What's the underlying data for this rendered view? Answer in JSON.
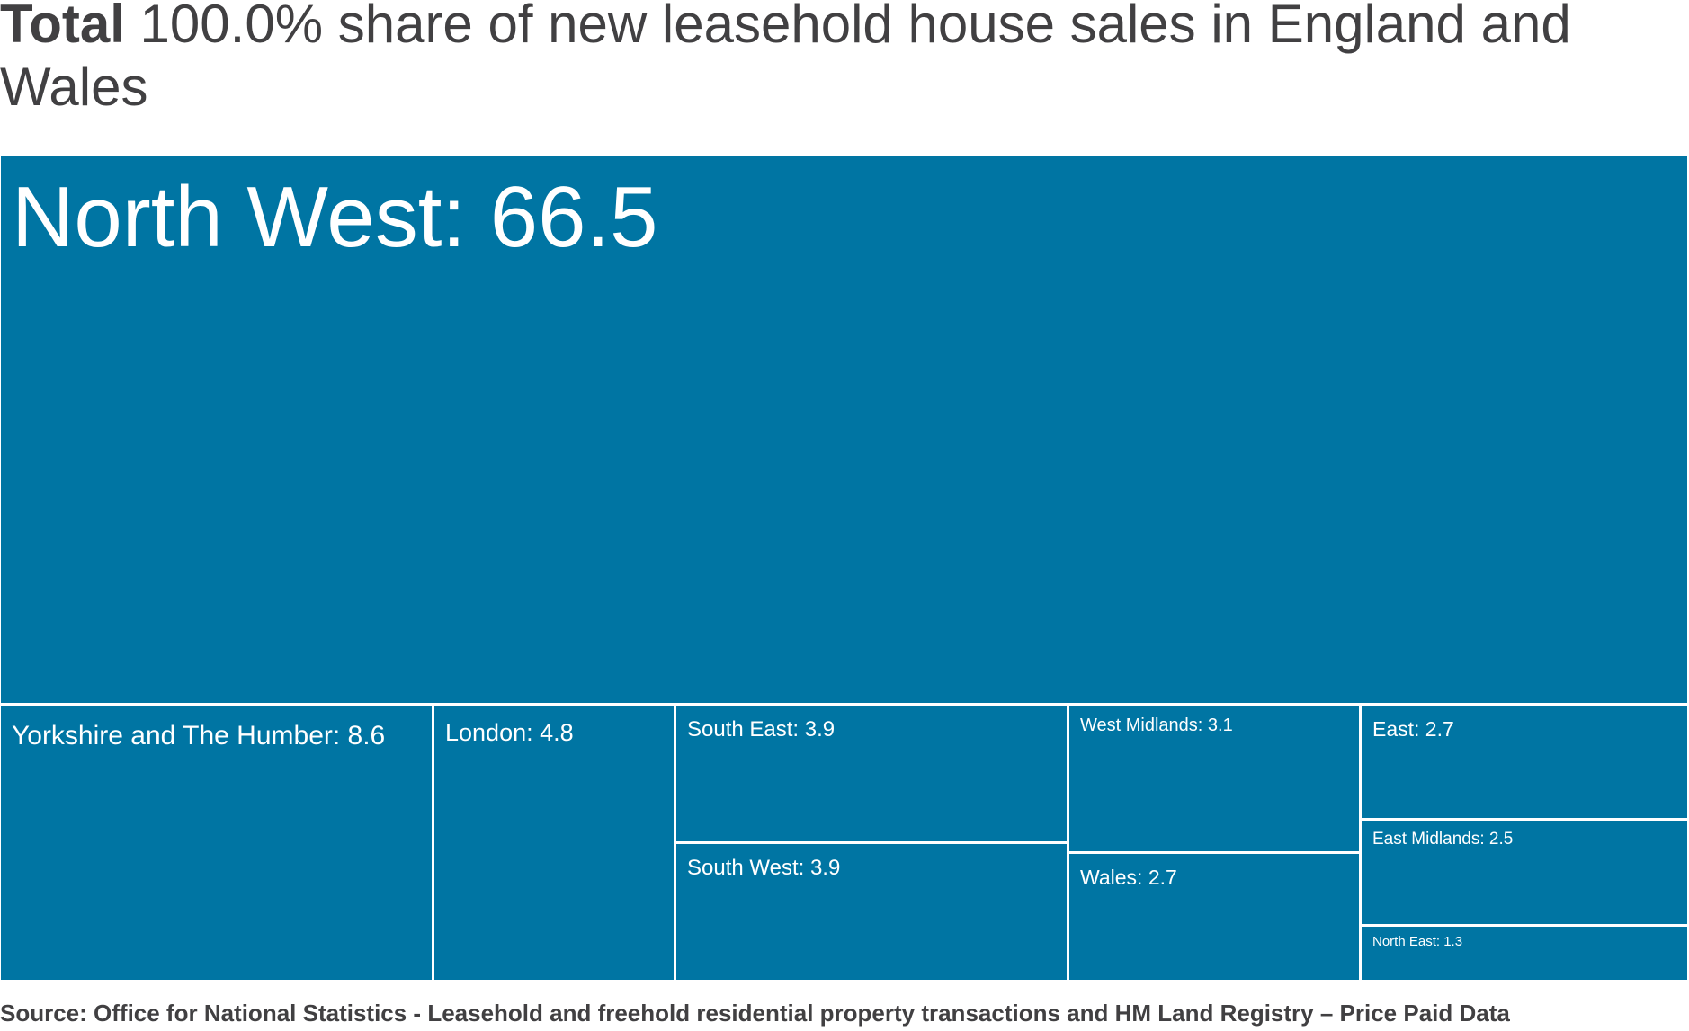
{
  "title": {
    "bold": "Total",
    "rest": " 100.0% share of new leasehold house sales in England and Wales"
  },
  "chart_data": {
    "type": "treemap",
    "title": "Total 100.0% share of new leasehold house sales in England and Wales",
    "unit": "%",
    "color": "#0075a3",
    "items": [
      {
        "name": "North West",
        "value": 66.5,
        "label": "North West: 66.5"
      },
      {
        "name": "Yorkshire and The Humber",
        "value": 8.6,
        "label": "Yorkshire and The Humber: 8.6"
      },
      {
        "name": "London",
        "value": 4.8,
        "label": "London: 4.8"
      },
      {
        "name": "South East",
        "value": 3.9,
        "label": "South East: 3.9"
      },
      {
        "name": "South West",
        "value": 3.9,
        "label": "South West: 3.9"
      },
      {
        "name": "West Midlands",
        "value": 3.1,
        "label": "West Midlands: 3.1"
      },
      {
        "name": "Wales",
        "value": 2.7,
        "label": "Wales: 2.7"
      },
      {
        "name": "East",
        "value": 2.7,
        "label": "East: 2.7"
      },
      {
        "name": "East Midlands",
        "value": 2.5,
        "label": "East Midlands: 2.5"
      },
      {
        "name": "North East",
        "value": 1.3,
        "label": "North East: 1.3"
      }
    ]
  },
  "source": "Source: Office for National Statistics - Leasehold and freehold residential property transactions and HM Land Registry – Price Paid Data"
}
